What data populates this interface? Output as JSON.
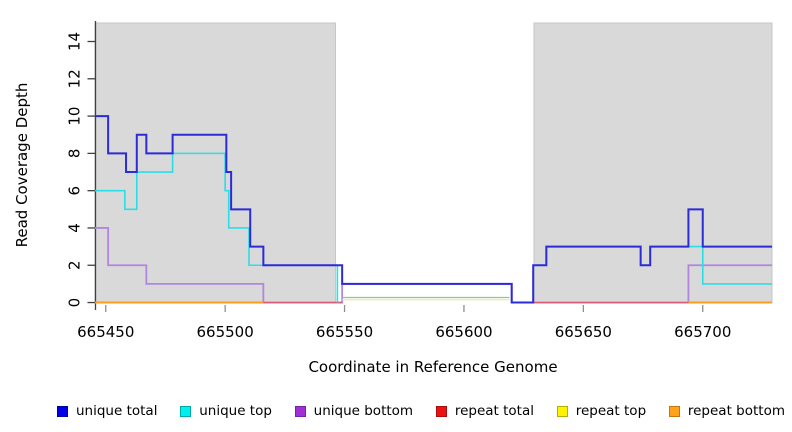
{
  "figure": {
    "x_axis_title": "Coordinate in Reference Genome",
    "y_axis_title": "Read Coverage Depth"
  },
  "chart_data": {
    "type": "line",
    "step": true,
    "title": "",
    "xlabel": "Coordinate in Reference Genome",
    "ylabel": "Read Coverage Depth",
    "xlim": [
      665445.5,
      665729
    ],
    "ylim": [
      -0.4,
      15.1
    ],
    "xticks": [
      665450,
      665500,
      665550,
      665600,
      665650,
      665700
    ],
    "yticks": [
      0,
      2,
      4,
      6,
      8,
      10,
      12,
      14
    ],
    "grid": false,
    "legend_position": "bottom",
    "background_color": "#ffffff",
    "shaded_region_color": "#d9d9d9",
    "shaded_region_border": "#c6c6c6",
    "shaded_regions": [
      {
        "x0": 665445.5,
        "x1": 665546.3,
        "y0": 0,
        "y1": 15.0
      },
      {
        "x0": 665629.3,
        "x1": 665729.0,
        "y0": 0,
        "y1": 15.0
      }
    ],
    "series": [
      {
        "name": "unique bottom",
        "color": "#b285df",
        "width": 1.8,
        "runs": [
          {
            "steps": [
              [
                665445.5,
                4
              ],
              [
                665451,
                2
              ],
              [
                665467,
                1
              ],
              [
                665516,
                0
              ],
              [
                665549,
                1
              ],
              [
                665620,
                0
              ],
              [
                665694,
                2
              ]
            ],
            "end": 665729
          }
        ]
      },
      {
        "name": "repeat total",
        "color": "#db5c78",
        "width": 1.3,
        "runs": [
          {
            "steps": [
              [
                665516,
                0
              ]
            ],
            "end": 665549
          },
          {
            "steps": [
              [
                665629,
                0
              ]
            ],
            "end": 665694
          }
        ]
      },
      {
        "name": "repeat top",
        "color": "#eeeca0",
        "width": 1.2,
        "runs": [
          {
            "steps": [
              [
                665549,
                0.15
              ]
            ],
            "end": 665619
          }
        ]
      },
      {
        "name": "unlabeled green segment",
        "color": "#8cc88c",
        "width": 1.2,
        "runs": [
          {
            "steps": [
              [
                665549,
                0.27
              ]
            ],
            "end": 665619
          }
        ]
      },
      {
        "name": "unique top",
        "color": "#2adee6",
        "width": 1.6,
        "runs": [
          {
            "steps": [
              [
                665445.5,
                6
              ],
              [
                665458,
                5
              ],
              [
                665463,
                7
              ],
              [
                665478,
                8
              ],
              [
                665500,
                6
              ],
              [
                665501.5,
                4
              ],
              [
                665510,
                2
              ],
              [
                665547,
                0
              ]
            ],
            "end": 665547
          },
          {
            "steps": [
              [
                665629,
                2
              ],
              [
                665634.5,
                3
              ],
              [
                665674,
                2
              ],
              [
                665678,
                3
              ],
              [
                665700,
                1
              ]
            ],
            "end": 665729
          }
        ]
      },
      {
        "name": "unique total",
        "color": "#2b2bd8",
        "width": 2,
        "runs": [
          {
            "steps": [
              [
                665445.5,
                10
              ],
              [
                665451,
                8
              ],
              [
                665458.5,
                7
              ],
              [
                665463,
                9
              ],
              [
                665467,
                8
              ],
              [
                665478,
                9
              ],
              [
                665500.5,
                7
              ],
              [
                665502.5,
                5
              ],
              [
                665510.5,
                3
              ],
              [
                665516,
                2
              ],
              [
                665549,
                1
              ],
              [
                665620,
                0
              ],
              [
                665629,
                2
              ],
              [
                665634.5,
                3
              ],
              [
                665674,
                2
              ],
              [
                665678,
                3
              ],
              [
                665694,
                5
              ],
              [
                665700,
                3
              ]
            ],
            "end": 665729
          }
        ]
      },
      {
        "name": "repeat bottom",
        "color": "#ff9d1e",
        "width": 2,
        "runs": [
          {
            "steps": [
              [
                665445.5,
                0
              ]
            ],
            "end": 665516
          },
          {
            "steps": [
              [
                665694,
                0
              ]
            ],
            "end": 665729
          }
        ]
      }
    ],
    "legend": [
      {
        "label": "unique total",
        "fill": "#0000e8",
        "border": "#0000a8"
      },
      {
        "label": "unique top",
        "fill": "#00f0f0",
        "border": "#00a8a8"
      },
      {
        "label": "unique bottom",
        "fill": "#a02fd6",
        "border": "#7a1fa8"
      },
      {
        "label": "repeat total",
        "fill": "#ee1111",
        "border": "#a80d0d"
      },
      {
        "label": "repeat top",
        "fill": "#fdf200",
        "border": "#b8ae00"
      },
      {
        "label": "repeat bottom",
        "fill": "#ffa31a",
        "border": "#c47708"
      }
    ]
  }
}
